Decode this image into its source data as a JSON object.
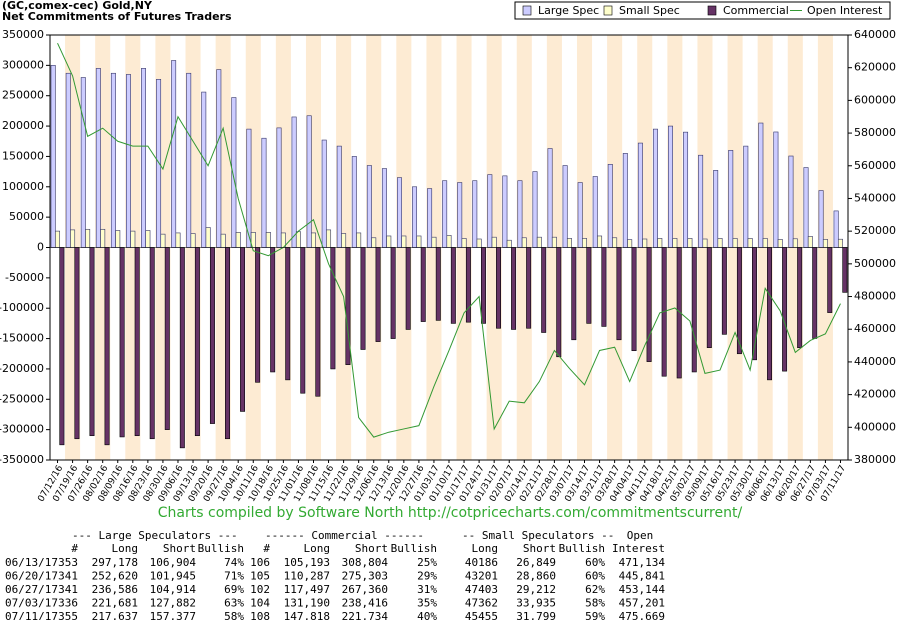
{
  "chart_data": {
    "type": "bar",
    "title": "(GC,comex-cec) Gold,NY",
    "subtitle": "Net Commitments of Futures Traders",
    "legend": "top-right",
    "categories": [
      "07/12/16",
      "07/19/16",
      "07/26/16",
      "08/02/16",
      "08/09/16",
      "08/16/16",
      "08/23/16",
      "08/30/16",
      "09/06/16",
      "09/13/16",
      "09/20/16",
      "09/27/16",
      "10/04/16",
      "10/11/16",
      "10/18/16",
      "10/25/16",
      "11/01/16",
      "11/08/16",
      "11/15/16",
      "11/22/16",
      "11/29/16",
      "12/06/16",
      "12/13/16",
      "12/20/16",
      "12/27/16",
      "01/03/17",
      "01/10/17",
      "01/17/17",
      "01/24/17",
      "01/31/17",
      "02/07/17",
      "02/14/17",
      "02/21/17",
      "02/28/17",
      "03/07/17",
      "03/14/17",
      "03/21/17",
      "03/28/17",
      "04/04/17",
      "04/11/17",
      "04/18/17",
      "04/25/17",
      "05/02/17",
      "05/09/17",
      "05/16/17",
      "05/23/17",
      "05/30/17",
      "06/06/17",
      "06/13/17",
      "06/20/17",
      "06/27/17",
      "07/03/17",
      "07/11/17"
    ],
    "series": [
      {
        "name": "Large Spec",
        "color": "#ccccff",
        "values": [
          300000,
          287000,
          280000,
          295000,
          287000,
          285000,
          295000,
          277000,
          308000,
          287000,
          256000,
          293000,
          247000,
          195000,
          180000,
          197000,
          215000,
          217000,
          177000,
          167000,
          150000,
          135000,
          130000,
          115000,
          100000,
          97000,
          110000,
          107000,
          110000,
          120000,
          118000,
          110000,
          125000,
          163000,
          135000,
          107000,
          117000,
          137000,
          155000,
          172000,
          195000,
          200000,
          190000,
          152000,
          127000,
          160000,
          167000,
          205000,
          190274,
          150675,
          131672,
          93799,
          60260
        ]
      },
      {
        "name": "Small Spec",
        "color": "#ffffcc",
        "values": [
          27000,
          29000,
          30000,
          30000,
          28000,
          27000,
          28000,
          22000,
          24000,
          23000,
          33000,
          22000,
          25000,
          25000,
          25000,
          24000,
          26000,
          24000,
          29000,
          23000,
          24000,
          16000,
          19000,
          19000,
          19000,
          17000,
          20000,
          15000,
          14000,
          17000,
          12000,
          16000,
          17000,
          17000,
          15000,
          15000,
          19000,
          16000,
          13000,
          14000,
          15000,
          15000,
          15000,
          14000,
          15000,
          15000,
          15000,
          15000,
          13337,
          14341,
          18191,
          13427,
          13656
        ]
      },
      {
        "name": "Commercial",
        "color": "#663366",
        "values": [
          -325000,
          -315000,
          -310000,
          -325000,
          -312000,
          -310000,
          -315000,
          -300000,
          -330000,
          -310000,
          -290000,
          -315000,
          -270000,
          -222000,
          -205000,
          -218000,
          -240000,
          -245000,
          -200000,
          -193000,
          -168000,
          -155000,
          -150000,
          -135000,
          -122000,
          -120000,
          -125000,
          -123000,
          -125000,
          -133000,
          -135000,
          -133000,
          -140000,
          -180000,
          -152000,
          -125000,
          -130000,
          -152000,
          -170000,
          -188000,
          -212000,
          -215000,
          -205000,
          -165000,
          -143000,
          -175000,
          -185000,
          -218000,
          -203611,
          -165016,
          -149863,
          -107226,
          -73916
        ]
      },
      {
        "name": "Open Interest",
        "color": "#339933",
        "type": "line",
        "axis": "y2",
        "values": [
          635000,
          615000,
          578000,
          583000,
          575000,
          572000,
          572000,
          558000,
          590000,
          575000,
          560000,
          583000,
          540000,
          508000,
          505000,
          510000,
          520000,
          527000,
          500000,
          480000,
          406000,
          394000,
          397000,
          399000,
          401000,
          425000,
          447000,
          470000,
          480000,
          399000,
          416000,
          415000,
          428000,
          447000,
          436000,
          426000,
          447000,
          449000,
          428000,
          450000,
          470000,
          473000,
          465000,
          433000,
          435000,
          458000,
          435000,
          485000,
          471134,
          445841,
          453144,
          457201,
          475669
        ]
      }
    ],
    "ylim": [
      -350000,
      350000
    ],
    "yticks": [
      -350000,
      -300000,
      -250000,
      -200000,
      -150000,
      -100000,
      -50000,
      0,
      50000,
      100000,
      150000,
      200000,
      250000,
      300000,
      350000
    ],
    "y2lim": [
      380000,
      640000
    ],
    "y2ticks": [
      380000,
      400000,
      420000,
      440000,
      460000,
      480000,
      500000,
      520000,
      540000,
      560000,
      580000,
      600000,
      620000,
      640000
    ],
    "stripe_color": "#fdebd3"
  },
  "credit": "Charts compiled by Software North  http://cotpricecharts.com/commitmentscurrent/",
  "table": {
    "group_headers": [
      "--- Large Speculators ---",
      "------ Commercial ------",
      "-- Small Speculators --",
      "Open"
    ],
    "columns": [
      "#",
      "Long",
      "Short",
      "Bullish",
      "#",
      "Long",
      "Short",
      "Bullish",
      "Long",
      "Short",
      "Bullish",
      "Interest"
    ],
    "rows": [
      [
        "06/13/17",
        "353",
        "297,178",
        "106,904",
        "74%",
        "106",
        "105,193",
        "308,804",
        "25%",
        "40186",
        "26,849",
        "60%",
        "471,134"
      ],
      [
        "06/20/17",
        "341",
        "252,620",
        "101,945",
        "71%",
        "105",
        "110,287",
        "275,303",
        "29%",
        "43201",
        "28,860",
        "60%",
        "445,841"
      ],
      [
        "06/27/17",
        "341",
        "236,586",
        "104,914",
        "69%",
        "102",
        "117,497",
        "267,360",
        "31%",
        "47403",
        "29,212",
        "62%",
        "453,144"
      ],
      [
        "07/03/17",
        "336",
        "221,681",
        "127,882",
        "63%",
        "104",
        "131,190",
        "238,416",
        "35%",
        "47362",
        "33,935",
        "58%",
        "457,201"
      ],
      [
        "07/11/17",
        "355",
        "217,637",
        "157,377",
        "58%",
        "108",
        "147,818",
        "221,734",
        "40%",
        "45455",
        "31,799",
        "59%",
        "475,669"
      ]
    ]
  }
}
